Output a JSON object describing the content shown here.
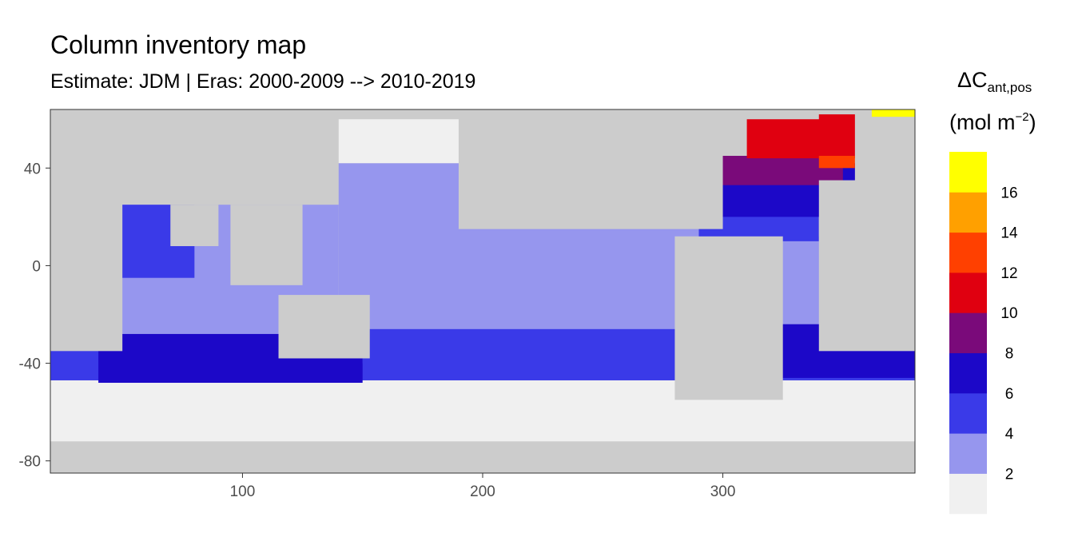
{
  "chart_data": {
    "type": "heatmap",
    "title": "Column inventory map",
    "subtitle": "Estimate: JDM  | Eras: 2000-2009 --> 2010-2019",
    "x_ticks": [
      100,
      200,
      300
    ],
    "y_ticks": [
      40,
      0,
      -40,
      -80
    ],
    "y_tick_labels": [
      "40",
      "0",
      "-40",
      "-80"
    ],
    "xlim": [
      20,
      380
    ],
    "ylim": [
      -85,
      64
    ],
    "legend": {
      "title_main": "ΔC",
      "title_sub": "ant,pos",
      "units_pre": "(mol m",
      "units_sup": "−2",
      "units_post": ")",
      "placement": "right",
      "bins": [
        {
          "lower": 0,
          "upper": 2,
          "color": "#f0f0f0"
        },
        {
          "lower": 2,
          "upper": 4,
          "color": "#9696ee"
        },
        {
          "lower": 4,
          "upper": 6,
          "color": "#3a3ae8"
        },
        {
          "lower": 6,
          "upper": 8,
          "color": "#1c08c8"
        },
        {
          "lower": 8,
          "upper": 10,
          "color": "#7a0a7a"
        },
        {
          "lower": 10,
          "upper": 12,
          "color": "#e00010"
        },
        {
          "lower": 12,
          "upper": 14,
          "color": "#ff4000"
        },
        {
          "lower": 14,
          "upper": 16,
          "color": "#ffa000"
        },
        {
          "lower": 16,
          "upper": 18,
          "color": "#ffff00"
        }
      ],
      "labels": [
        "2",
        "4",
        "6",
        "8",
        "10",
        "12",
        "14",
        "16"
      ]
    },
    "land_color": "#cccccc",
    "regions": [
      {
        "name": "southern-ocean-low",
        "bin": 0,
        "x": [
          20,
          380
        ],
        "y": [
          -85,
          -47
        ]
      },
      {
        "name": "indian-ocean-mid",
        "bin": 1,
        "x": [
          20,
          140
        ],
        "y": [
          -32,
          25
        ]
      },
      {
        "name": "pacific-ocean-mid",
        "bin": 1,
        "x": [
          140,
          290
        ],
        "y": [
          -32,
          42
        ]
      },
      {
        "name": "north-pacific-low",
        "bin": 0,
        "x": [
          140,
          240
        ],
        "y": [
          42,
          60
        ]
      },
      {
        "name": "arabian-sea",
        "bin": 2,
        "x": [
          40,
          80
        ],
        "y": [
          -5,
          25
        ]
      },
      {
        "name": "southern-band",
        "bin": 2,
        "x": [
          20,
          380
        ],
        "y": [
          -47,
          -32
        ]
      },
      {
        "name": "south-indian-high",
        "bin": 3,
        "x": [
          40,
          150
        ],
        "y": [
          -48,
          -28
        ]
      },
      {
        "name": "south-pacific-band",
        "bin": 2,
        "x": [
          150,
          290
        ],
        "y": [
          -40,
          -26
        ]
      },
      {
        "name": "south-atlantic-mid",
        "bin": 1,
        "x": [
          310,
          380
        ],
        "y": [
          -30,
          12
        ]
      },
      {
        "name": "south-atlantic-band",
        "bin": 3,
        "x": [
          320,
          380
        ],
        "y": [
          -46,
          -24
        ]
      },
      {
        "name": "tropical-atlantic",
        "bin": 2,
        "x": [
          290,
          340
        ],
        "y": [
          10,
          25
        ]
      },
      {
        "name": "north-atlantic-band",
        "bin": 3,
        "x": [
          283,
          355
        ],
        "y": [
          20,
          42
        ]
      },
      {
        "name": "north-atlantic-purple",
        "bin": 4,
        "x": [
          285,
          350
        ],
        "y": [
          33,
          45
        ]
      },
      {
        "name": "north-atlantic-red",
        "bin": 5,
        "x": [
          310,
          355
        ],
        "y": [
          44,
          62
        ]
      },
      {
        "name": "north-atlantic-orange",
        "bin": 6,
        "x": [
          340,
          355
        ],
        "y": [
          40,
          45
        ]
      },
      {
        "name": "nordic-seas-yellow",
        "bin": 8,
        "x": [
          362,
          380
        ],
        "y": [
          61,
          64
        ]
      }
    ],
    "land": [
      {
        "name": "africa",
        "x": [
          20,
          50
        ],
        "y": [
          -35,
          40
        ]
      },
      {
        "name": "eurasia",
        "x": [
          20,
          140
        ],
        "y": [
          25,
          64
        ]
      },
      {
        "name": "india",
        "x": [
          70,
          90
        ],
        "y": [
          8,
          25
        ]
      },
      {
        "name": "southeast-asia",
        "x": [
          95,
          125
        ],
        "y": [
          -8,
          25
        ]
      },
      {
        "name": "australia",
        "x": [
          115,
          153
        ],
        "y": [
          -38,
          -12
        ]
      },
      {
        "name": "north-america",
        "x": [
          190,
          300
        ],
        "y": [
          15,
          64
        ]
      },
      {
        "name": "south-america",
        "x": [
          280,
          325
        ],
        "y": [
          -55,
          12
        ]
      },
      {
        "name": "greenland",
        "x": [
          300,
          340
        ],
        "y": [
          60,
          64
        ]
      },
      {
        "name": "africa-east",
        "x": [
          340,
          380
        ],
        "y": [
          -35,
          35
        ]
      },
      {
        "name": "antarctica",
        "x": [
          20,
          380
        ],
        "y": [
          -85,
          -72
        ]
      }
    ]
  }
}
